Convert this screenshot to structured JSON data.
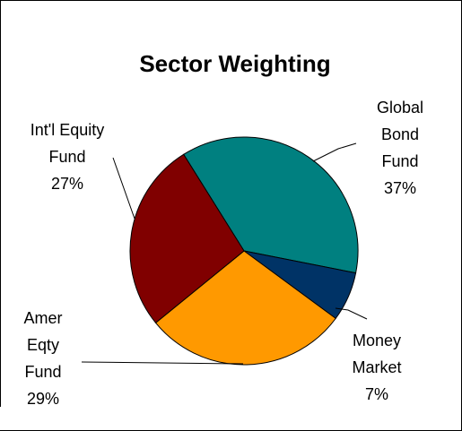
{
  "chart_data": {
    "type": "pie",
    "title": "Sector Weighting",
    "slices": [
      {
        "label_lines": [
          "Global",
          "Bond",
          "Fund"
        ],
        "value": 37,
        "value_label": "37%",
        "color": "#008080"
      },
      {
        "label_lines": [
          "Money",
          "Market"
        ],
        "value": 7,
        "value_label": "7%",
        "color": "#003366"
      },
      {
        "label_lines": [
          "Amer",
          "Eqty",
          "Fund"
        ],
        "value": 29,
        "value_label": "29%",
        "color": "#FF9900"
      },
      {
        "label_lines": [
          "Int'l Equity",
          "Fund"
        ],
        "value": 27,
        "value_label": "27%",
        "color": "#800000"
      }
    ],
    "legend": "none"
  }
}
